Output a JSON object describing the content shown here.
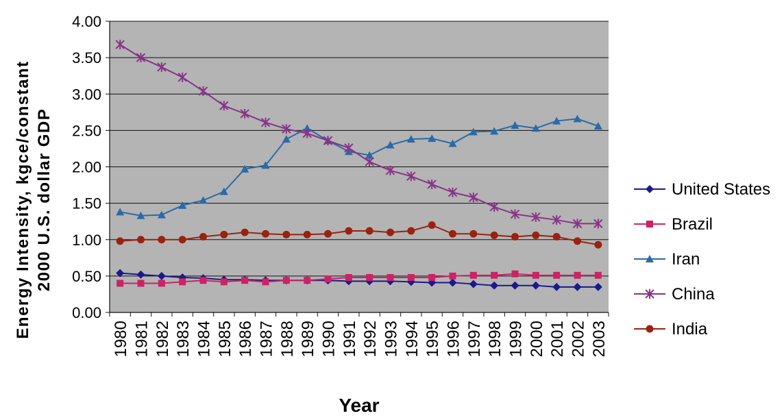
{
  "chart_data": {
    "type": "line",
    "title": "",
    "xlabel": "Year",
    "ylabel_lines": [
      "Energy Intensity, kgce/constant",
      "2000 U.S. dollar GDP"
    ],
    "ylim": [
      0,
      4
    ],
    "yticks": [
      "0.00",
      "0.50",
      "1.00",
      "1.50",
      "2.00",
      "2.50",
      "3.00",
      "3.50",
      "4.00"
    ],
    "grid": true,
    "legend_position": "right",
    "plot_background": "#b4b4b4",
    "x": [
      "1980",
      "1981",
      "1982",
      "1983",
      "1984",
      "1985",
      "1986",
      "1987",
      "1988",
      "1989",
      "1990",
      "1991",
      "1992",
      "1993",
      "1994",
      "1995",
      "1996",
      "1997",
      "1998",
      "1999",
      "2000",
      "2001",
      "2002",
      "2003"
    ],
    "series": [
      {
        "name": "United States",
        "color": "#1a1a8c",
        "marker": "diamond",
        "values": [
          0.54,
          0.52,
          0.5,
          0.48,
          0.47,
          0.45,
          0.45,
          0.44,
          0.44,
          0.44,
          0.44,
          0.43,
          0.43,
          0.43,
          0.42,
          0.41,
          0.41,
          0.39,
          0.37,
          0.37,
          0.37,
          0.35,
          0.35,
          0.35
        ]
      },
      {
        "name": "Brazil",
        "color": "#cc2266",
        "marker": "square",
        "values": [
          0.4,
          0.4,
          0.4,
          0.42,
          0.44,
          0.42,
          0.44,
          0.42,
          0.44,
          0.44,
          0.46,
          0.48,
          0.48,
          0.48,
          0.48,
          0.48,
          0.5,
          0.51,
          0.51,
          0.53,
          0.51,
          0.51,
          0.51,
          0.51
        ]
      },
      {
        "name": "Iran",
        "color": "#2a6aa8",
        "marker": "triangle",
        "values": [
          1.38,
          1.33,
          1.34,
          1.47,
          1.54,
          1.66,
          1.97,
          2.02,
          2.38,
          2.53,
          2.36,
          2.21,
          2.16,
          2.3,
          2.38,
          2.39,
          2.32,
          2.48,
          2.49,
          2.57,
          2.53,
          2.63,
          2.66,
          2.56
        ]
      },
      {
        "name": "China",
        "color": "#883388",
        "marker": "star",
        "values": [
          3.68,
          3.5,
          3.37,
          3.23,
          3.04,
          2.84,
          2.73,
          2.61,
          2.52,
          2.46,
          2.36,
          2.26,
          2.07,
          1.95,
          1.87,
          1.76,
          1.65,
          1.58,
          1.45,
          1.35,
          1.31,
          1.27,
          1.22,
          1.22
        ]
      },
      {
        "name": "India",
        "color": "#992211",
        "marker": "circle",
        "values": [
          0.98,
          1.0,
          1.0,
          1.0,
          1.04,
          1.07,
          1.1,
          1.08,
          1.07,
          1.07,
          1.08,
          1.12,
          1.12,
          1.1,
          1.12,
          1.2,
          1.08,
          1.08,
          1.06,
          1.04,
          1.06,
          1.04,
          0.98,
          0.93
        ]
      }
    ]
  }
}
